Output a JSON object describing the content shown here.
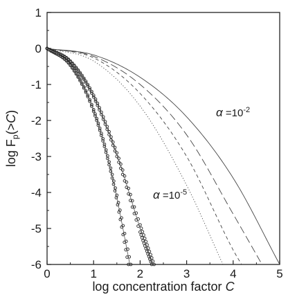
{
  "chart_data": {
    "type": "line",
    "xlabel_text": "log concentration factor ",
    "xlabel_var": "C",
    "ylabel_prefix": "log F",
    "ylabel_sub": "p",
    "ylabel_suffix": "(>",
    "ylabel_var": "C",
    "ylabel_close": ")",
    "xlim": [
      0,
      5
    ],
    "ylim": [
      -6,
      1
    ],
    "xticks": [
      "0",
      "1",
      "2",
      "3",
      "4",
      "5"
    ],
    "yticks": [
      "1",
      "0",
      "-1",
      "-2",
      "-3",
      "-4",
      "-5",
      "-6"
    ],
    "grid": false,
    "legend": "none",
    "annotations": [
      {
        "alpha": "α",
        "text": " =10",
        "exp": "-2"
      },
      {
        "alpha": "α",
        "text": " =10",
        "exp": "-5"
      }
    ],
    "series": [
      {
        "style": "thin-solid",
        "x": [
          0,
          1,
          2,
          3,
          4,
          5
        ],
        "y": [
          0,
          -0.18,
          -0.8,
          -1.9,
          -3.6,
          -6.0
        ]
      },
      {
        "style": "long-dash",
        "x": [
          0,
          1,
          2,
          3,
          4,
          4.62
        ],
        "y": [
          0,
          -0.22,
          -1.0,
          -2.4,
          -4.6,
          -6.0
        ]
      },
      {
        "style": "dash",
        "x": [
          0,
          1,
          2,
          3,
          4,
          4.18
        ],
        "y": [
          0,
          -0.26,
          -1.25,
          -3.0,
          -5.6,
          -6.0
        ]
      },
      {
        "style": "dot",
        "x": [
          0,
          1,
          2,
          3,
          3.78
        ],
        "y": [
          0,
          -0.35,
          -1.6,
          -3.8,
          -6.0
        ]
      },
      {
        "style": "markers",
        "x": [
          0,
          0.5,
          1,
          1.5,
          2,
          2.3
        ],
        "y": [
          0,
          -0.35,
          -1.3,
          -2.9,
          -4.9,
          -6.0
        ]
      },
      {
        "style": "markers",
        "x": [
          0,
          0.5,
          1,
          1.5,
          2,
          2.25
        ],
        "y": [
          0,
          -0.37,
          -1.35,
          -3.0,
          -5.1,
          -6.0
        ]
      },
      {
        "style": "markers",
        "x": [
          0,
          0.5,
          1,
          1.4,
          1.8
        ],
        "y": [
          0,
          -0.45,
          -1.7,
          -3.5,
          -6.0
        ]
      },
      {
        "style": "markers",
        "x": [
          0,
          0.5,
          1,
          1.4,
          1.75
        ],
        "y": [
          0,
          -0.47,
          -1.75,
          -3.6,
          -6.0
        ]
      },
      {
        "style": "fit",
        "x": [
          0,
          0.5,
          1,
          1.5,
          2,
          2.25
        ],
        "y": [
          0,
          -0.36,
          -1.33,
          -2.95,
          -5.0,
          -6.0
        ]
      },
      {
        "style": "fit",
        "x": [
          0,
          0.5,
          1,
          1.4,
          1.78
        ],
        "y": [
          0,
          -0.46,
          -1.72,
          -3.55,
          -6.0
        ]
      }
    ]
  }
}
